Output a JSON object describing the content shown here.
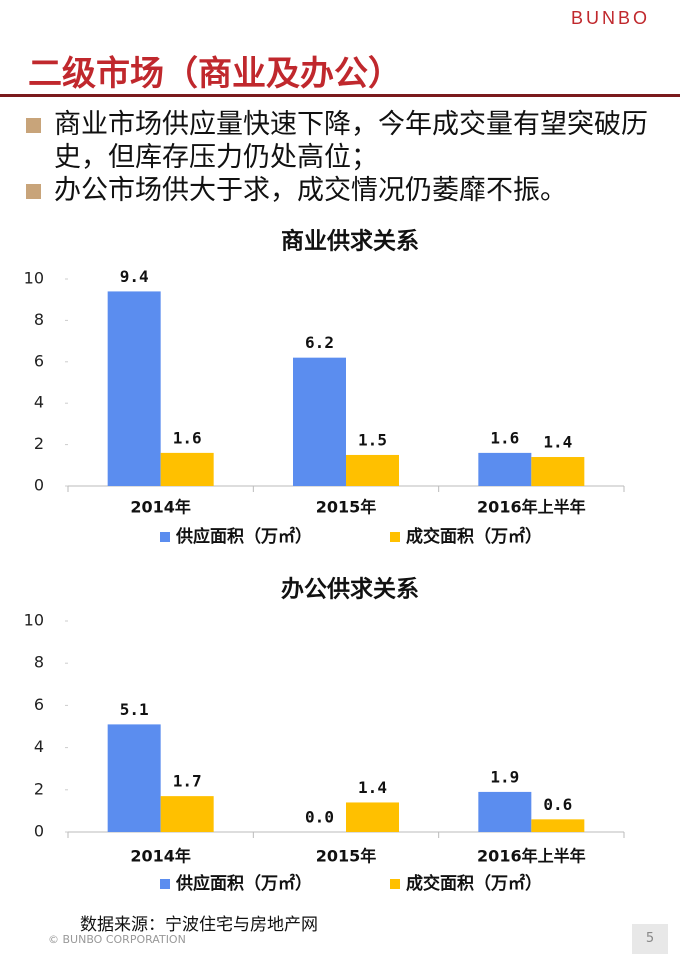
{
  "header": {
    "logo": "BUNBO",
    "title": "二级市场（商业及办公）"
  },
  "bullets": [
    "商业市场供应量快速下降，今年成交量有望突破历史，但库存压力仍处高位；",
    "办公市场供大于求，成交情况仍萎靡不振。"
  ],
  "chart_data": [
    {
      "type": "bar",
      "title": "商业供求关系",
      "categories": [
        "2014年",
        "2015年",
        "2016年上半年"
      ],
      "series": [
        {
          "name": "供应面积（万㎡）",
          "color": "#5b8def",
          "values": [
            9.4,
            6.2,
            1.6
          ]
        },
        {
          "name": "成交面积（万㎡）",
          "color": "#ffc000",
          "values": [
            1.6,
            1.5,
            1.4
          ]
        }
      ],
      "ylim": [
        0,
        10
      ],
      "yticks": [
        0,
        2,
        4,
        6,
        8,
        10
      ]
    },
    {
      "type": "bar",
      "title": "办公供求关系",
      "categories": [
        "2014年",
        "2015年",
        "2016年上半年"
      ],
      "series": [
        {
          "name": "供应面积（万㎡）",
          "color": "#5b8def",
          "values": [
            5.1,
            0,
            1.9
          ],
          "value_labels": [
            "5.1",
            "0.0",
            "1.9"
          ]
        },
        {
          "name": "成交面积（万㎡）",
          "color": "#ffc000",
          "values": [
            1.7,
            1.4,
            0.6
          ]
        }
      ],
      "ylim": [
        0,
        10
      ],
      "yticks": [
        0,
        2,
        4,
        6,
        8,
        10
      ]
    }
  ],
  "footer": {
    "source": "数据来源：宁波住宅与房地产网",
    "copyright": "© BUNBO CORPORATION",
    "page": "5"
  }
}
